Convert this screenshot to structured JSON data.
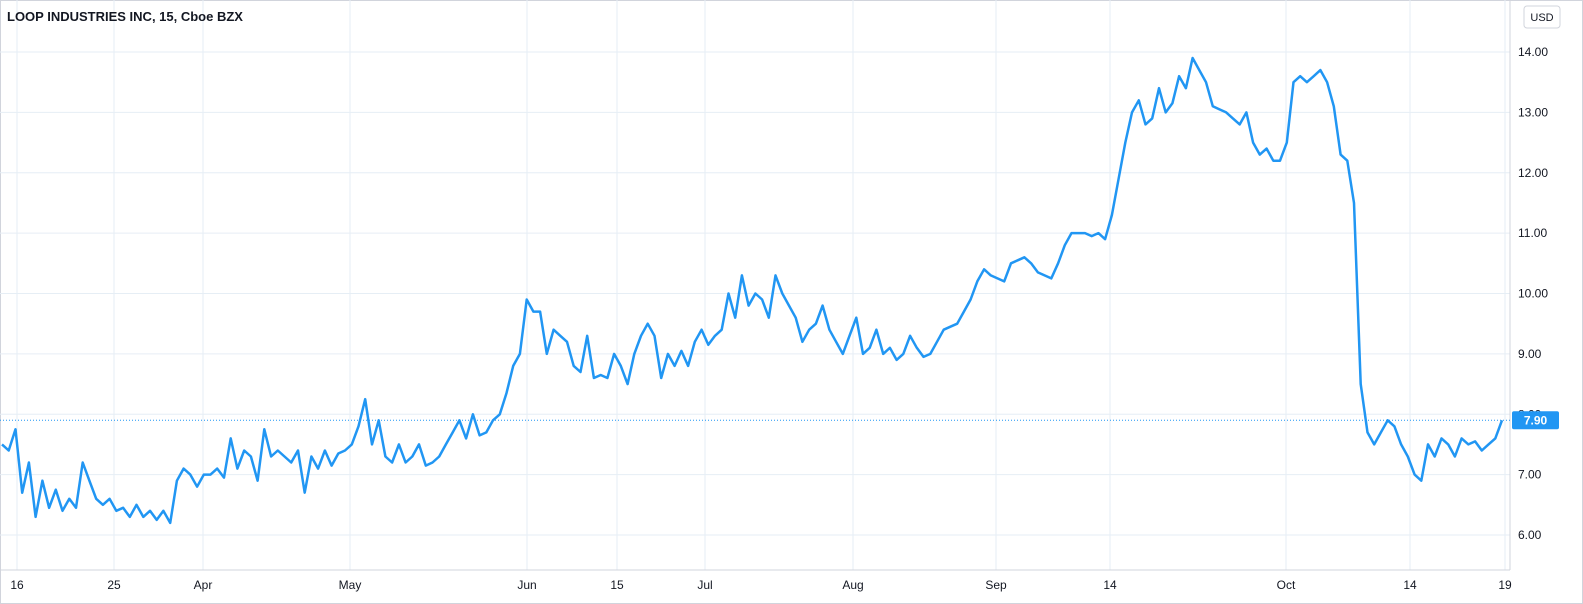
{
  "header": {
    "symbol_title": "LOOP INDUSTRIES INC, 15, Cboe BZX",
    "currency_button": "USD"
  },
  "colors": {
    "line": "#2196f3",
    "grid": "#e6eef5",
    "axis": "#d1d4dc",
    "text": "#131722",
    "price_label_bg": "#2196f3",
    "price_label_text": "#ffffff"
  },
  "chart_data": {
    "type": "line",
    "title": "LOOP INDUSTRIES INC, 15, Cboe BZX",
    "xlabel": "",
    "ylabel": "",
    "ylim": [
      5.5,
      14.4
    ],
    "grid": true,
    "y_ticks": [
      "6.00",
      "7.00",
      "8.00",
      "9.00",
      "10.00",
      "11.00",
      "12.00",
      "13.00",
      "14.00"
    ],
    "x_ticks": [
      "16",
      "25",
      "Apr",
      "May",
      "Jun",
      "15",
      "Jul",
      "Aug",
      "Sep",
      "14",
      "Oct",
      "14",
      "19"
    ],
    "last_price": 7.9,
    "last_price_label": "7.90",
    "series": [
      {
        "values": [
          7.5,
          7.4,
          7.75,
          6.7,
          7.2,
          6.3,
          6.9,
          6.45,
          6.75,
          6.4,
          6.6,
          6.45,
          7.2,
          6.9,
          6.6,
          6.5,
          6.6,
          6.4,
          6.45,
          6.3,
          6.5,
          6.3,
          6.4,
          6.25,
          6.4,
          6.2,
          6.9,
          7.1,
          7.0,
          6.8,
          7.0,
          7.0,
          7.1,
          6.95,
          7.6,
          7.1,
          7.4,
          7.3,
          6.9,
          7.75,
          7.3,
          7.4,
          7.3,
          7.2,
          7.4,
          6.7,
          7.3,
          7.1,
          7.4,
          7.15,
          7.35,
          7.4,
          7.5,
          7.8,
          8.25,
          7.5,
          7.9,
          7.3,
          7.2,
          7.5,
          7.2,
          7.3,
          7.5,
          7.15,
          7.2,
          7.3,
          7.5,
          7.7,
          7.9,
          7.6,
          8.0,
          7.65,
          7.7,
          7.9,
          8.0,
          8.35,
          8.8,
          9.0,
          9.9,
          9.7,
          9.7,
          9.0,
          9.4,
          9.3,
          9.2,
          8.8,
          8.7,
          9.3,
          8.6,
          8.65,
          8.6,
          9.0,
          8.8,
          8.5,
          9.0,
          9.3,
          9.5,
          9.3,
          8.6,
          9.0,
          8.8,
          9.05,
          8.8,
          9.2,
          9.4,
          9.15,
          9.3,
          9.4,
          10.0,
          9.6,
          10.3,
          9.8,
          10.0,
          9.9,
          9.6,
          10.3,
          10.0,
          9.8,
          9.6,
          9.2,
          9.4,
          9.5,
          9.8,
          9.4,
          9.2,
          9.0,
          9.3,
          9.6,
          9.0,
          9.1,
          9.4,
          9.0,
          9.1,
          8.9,
          9.0,
          9.3,
          9.1,
          8.95,
          9.0,
          9.2,
          9.4,
          9.45,
          9.5,
          9.7,
          9.9,
          10.2,
          10.4,
          10.3,
          10.25,
          10.2,
          10.5,
          10.55,
          10.6,
          10.5,
          10.35,
          10.3,
          10.25,
          10.5,
          10.8,
          11.0,
          11.0,
          11.0,
          10.95,
          11.0,
          10.9,
          11.3,
          11.9,
          12.5,
          13.0,
          13.2,
          12.8,
          12.9,
          13.4,
          13.0,
          13.15,
          13.6,
          13.4,
          13.9,
          13.7,
          13.5,
          13.1,
          13.05,
          13.0,
          12.9,
          12.8,
          13.0,
          12.5,
          12.3,
          12.4,
          12.2,
          12.2,
          12.5,
          13.5,
          13.6,
          13.5,
          13.6,
          13.7,
          13.5,
          13.1,
          12.3,
          12.2,
          11.5,
          8.5,
          7.7,
          7.5,
          7.7,
          7.9,
          7.8,
          7.5,
          7.3,
          7.0,
          6.9,
          7.5,
          7.3,
          7.6,
          7.5,
          7.3,
          7.6,
          7.5,
          7.55,
          7.4,
          7.5,
          7.6,
          7.9
        ]
      }
    ]
  }
}
